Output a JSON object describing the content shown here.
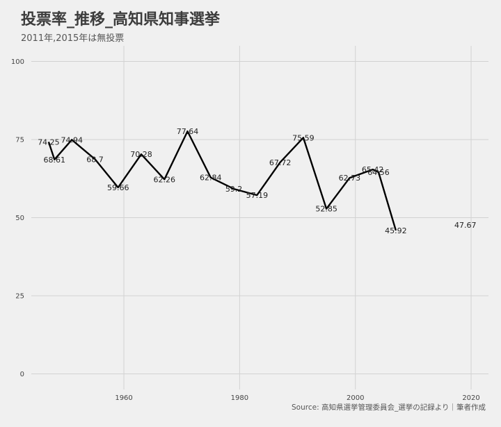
{
  "chart_data": {
    "type": "line",
    "title": "投票率_推移_高知県知事選挙",
    "subtitle": "2011年,2015年は無投票",
    "caption": "Source: 高知県選挙管理委員会_選挙の記録より｜筆者作成",
    "xlabel": "",
    "ylabel": "",
    "xlim": [
      1944,
      2023
    ],
    "ylim": [
      -5,
      105
    ],
    "x_ticks": [
      1960,
      1980,
      2000,
      2020
    ],
    "y_ticks": [
      0,
      25,
      50,
      75,
      100
    ],
    "grid": true,
    "line_color": "#000000",
    "series": [
      {
        "points": [
          {
            "x": 1947,
            "y": 74.25,
            "label": "74.25"
          },
          {
            "x": 1948,
            "y": 68.61,
            "label": "68.61"
          },
          {
            "x": 1951,
            "y": 74.94,
            "label": "74.94"
          },
          {
            "x": 1955,
            "y": 68.7,
            "label": "68.7"
          },
          {
            "x": 1959,
            "y": 59.66,
            "label": "59.66"
          },
          {
            "x": 1963,
            "y": 70.28,
            "label": "70.28"
          },
          {
            "x": 1967,
            "y": 62.26,
            "label": "62.26"
          },
          {
            "x": 1971,
            "y": 77.64,
            "label": "77.64"
          },
          {
            "x": 1975,
            "y": 62.84,
            "label": "62.84"
          },
          {
            "x": 1979,
            "y": 59.2,
            "label": "59.2"
          },
          {
            "x": 1983,
            "y": 57.19,
            "label": "57.19"
          },
          {
            "x": 1987,
            "y": 67.72,
            "label": "67.72"
          },
          {
            "x": 1991,
            "y": 75.59,
            "label": "75.59"
          },
          {
            "x": 1995,
            "y": 52.85,
            "label": "52.85"
          },
          {
            "x": 1999,
            "y": 62.73,
            "label": "62.73"
          },
          {
            "x": 2003,
            "y": 65.42,
            "label": "65.42"
          },
          {
            "x": 2004,
            "y": 64.56,
            "label": "64.56"
          },
          {
            "x": 2007,
            "y": 45.92,
            "label": "45.92"
          }
        ]
      }
    ],
    "standalone_points": [
      {
        "x": 2019,
        "y": 47.67,
        "label": "47.67"
      }
    ]
  }
}
